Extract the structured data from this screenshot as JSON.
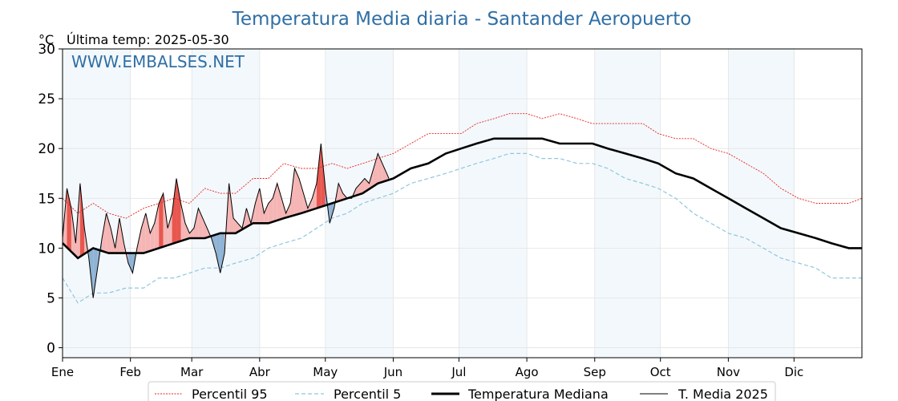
{
  "chart_data": {
    "type": "line",
    "title": "Temperatura Media diaria - Santander Aeropuerto",
    "unit": "°C",
    "subtitle": "Última temp: 2025-05-30",
    "watermark": "WWW.EMBALSES.NET",
    "xlabel": "",
    "ylabel": "",
    "ylim": [
      -1,
      30
    ],
    "xlim": [
      1,
      366
    ],
    "yticks": [
      0,
      5,
      10,
      15,
      20,
      25,
      30
    ],
    "month_labels": [
      "Ene",
      "Feb",
      "Mar",
      "Abr",
      "May",
      "Jun",
      "Jul",
      "Ago",
      "Sep",
      "Oct",
      "Nov",
      "Dic"
    ],
    "month_starts": [
      1,
      32,
      60,
      91,
      121,
      152,
      182,
      213,
      244,
      274,
      305,
      335
    ],
    "shaded_months": [
      "Ene",
      "Mar",
      "May",
      "Jul",
      "Sep",
      "Nov"
    ],
    "grid": true,
    "legend_position": "bottom",
    "colors": {
      "p95": "#e8231d",
      "p5": "#8fc7dc",
      "median": "#000000",
      "year": "#000000",
      "above": "#f5b5b5",
      "above_strong": "#e8574f",
      "below": "#8fb3d4",
      "below_strong": "#1f5f9a",
      "month_shade": "#f3f8fc",
      "title": "#2f6fa5"
    },
    "series": [
      {
        "name": "Percentil 95",
        "x": [
          1,
          8,
          15,
          22,
          30,
          38,
          45,
          52,
          59,
          66,
          73,
          80,
          88,
          95,
          102,
          110,
          117,
          124,
          131,
          138,
          145,
          152,
          160,
          168,
          176,
          183,
          190,
          198,
          205,
          213,
          220,
          228,
          236,
          243,
          250,
          258,
          266,
          273,
          281,
          289,
          297,
          305,
          313,
          321,
          329,
          337,
          345,
          352,
          360,
          366
        ],
        "y": [
          15.0,
          13.5,
          14.5,
          13.5,
          13.0,
          14.0,
          14.5,
          15.0,
          14.5,
          16.0,
          15.5,
          15.5,
          17.0,
          17.0,
          18.5,
          18.0,
          18.0,
          18.5,
          18.0,
          18.5,
          19.0,
          19.5,
          20.5,
          21.5,
          21.5,
          21.5,
          22.5,
          23.0,
          23.5,
          23.5,
          23.0,
          23.5,
          23.0,
          22.5,
          22.5,
          22.5,
          22.5,
          21.5,
          21.0,
          21.0,
          20.0,
          19.5,
          18.5,
          17.5,
          16.0,
          15.0,
          14.5,
          14.5,
          14.5,
          15.0
        ]
      },
      {
        "name": "Percentil 5",
        "x": [
          1,
          8,
          15,
          22,
          30,
          38,
          45,
          52,
          59,
          66,
          73,
          80,
          88,
          95,
          102,
          110,
          117,
          124,
          131,
          138,
          145,
          152,
          160,
          168,
          176,
          183,
          190,
          198,
          205,
          213,
          220,
          228,
          236,
          243,
          250,
          258,
          266,
          273,
          281,
          289,
          297,
          305,
          313,
          321,
          329,
          337,
          345,
          352,
          360,
          366
        ],
        "y": [
          7.0,
          4.5,
          5.5,
          5.5,
          6.0,
          6.0,
          7.0,
          7.0,
          7.5,
          8.0,
          8.0,
          8.5,
          9.0,
          10.0,
          10.5,
          11.0,
          12.0,
          13.0,
          13.5,
          14.5,
          15.0,
          15.5,
          16.5,
          17.0,
          17.5,
          18.0,
          18.5,
          19.0,
          19.5,
          19.5,
          19.0,
          19.0,
          18.5,
          18.5,
          18.0,
          17.0,
          16.5,
          16.0,
          15.0,
          13.5,
          12.5,
          11.5,
          11.0,
          10.0,
          9.0,
          8.5,
          8.0,
          7.0,
          7.0,
          7.0
        ]
      },
      {
        "name": "Temperatura Mediana",
        "x": [
          1,
          8,
          15,
          22,
          30,
          38,
          45,
          52,
          59,
          66,
          73,
          80,
          88,
          95,
          102,
          110,
          117,
          124,
          131,
          138,
          145,
          152,
          160,
          168,
          176,
          183,
          190,
          198,
          205,
          213,
          220,
          228,
          236,
          243,
          250,
          258,
          266,
          273,
          281,
          289,
          297,
          305,
          313,
          321,
          329,
          337,
          345,
          352,
          360,
          366
        ],
        "y": [
          10.5,
          9.0,
          10.0,
          9.5,
          9.5,
          9.5,
          10.0,
          10.5,
          11.0,
          11.0,
          11.5,
          11.5,
          12.5,
          12.5,
          13.0,
          13.5,
          14.0,
          14.5,
          15.0,
          15.5,
          16.5,
          17.0,
          18.0,
          18.5,
          19.5,
          20.0,
          20.5,
          21.0,
          21.0,
          21.0,
          21.0,
          20.5,
          20.5,
          20.5,
          20.0,
          19.5,
          19.0,
          18.5,
          17.5,
          17.0,
          16.0,
          15.0,
          14.0,
          13.0,
          12.0,
          11.5,
          11.0,
          10.5,
          10.0,
          10.0
        ]
      },
      {
        "name": "T. Media 2025",
        "x": [
          1,
          3,
          5,
          7,
          9,
          11,
          13,
          15,
          17,
          19,
          21,
          23,
          25,
          27,
          29,
          31,
          33,
          35,
          37,
          39,
          41,
          43,
          45,
          47,
          49,
          51,
          53,
          55,
          57,
          59,
          61,
          63,
          65,
          67,
          69,
          71,
          73,
          75,
          77,
          79,
          81,
          83,
          85,
          87,
          89,
          91,
          93,
          95,
          97,
          99,
          101,
          103,
          105,
          107,
          109,
          111,
          113,
          115,
          117,
          119,
          121,
          123,
          125,
          127,
          129,
          131,
          133,
          135,
          137,
          139,
          141,
          143,
          145,
          147,
          149,
          150
        ],
        "y": [
          11.0,
          16.0,
          14.0,
          10.5,
          16.5,
          12.0,
          9.0,
          5.0,
          8.0,
          11.0,
          13.5,
          12.0,
          10.0,
          13.0,
          10.5,
          8.5,
          7.5,
          10.0,
          12.0,
          13.5,
          11.5,
          12.5,
          14.5,
          15.5,
          12.0,
          13.5,
          17.0,
          14.5,
          12.5,
          11.5,
          12.0,
          14.0,
          13.0,
          12.0,
          11.0,
          9.5,
          7.5,
          9.5,
          16.5,
          13.0,
          12.5,
          12.0,
          14.0,
          12.5,
          14.5,
          16.0,
          13.5,
          14.5,
          15.0,
          16.5,
          15.0,
          13.5,
          14.5,
          18.0,
          17.0,
          15.5,
          14.0,
          15.0,
          16.5,
          20.5,
          16.0,
          12.5,
          14.0,
          16.5,
          15.5,
          15.0,
          15.0,
          16.0,
          16.5,
          17.0,
          16.5,
          18.0,
          19.5,
          18.5,
          17.5,
          17.0
        ]
      }
    ],
    "legend": [
      "Percentil 95",
      "Percentil 5",
      "Temperatura Mediana",
      "T. Media 2025"
    ]
  }
}
